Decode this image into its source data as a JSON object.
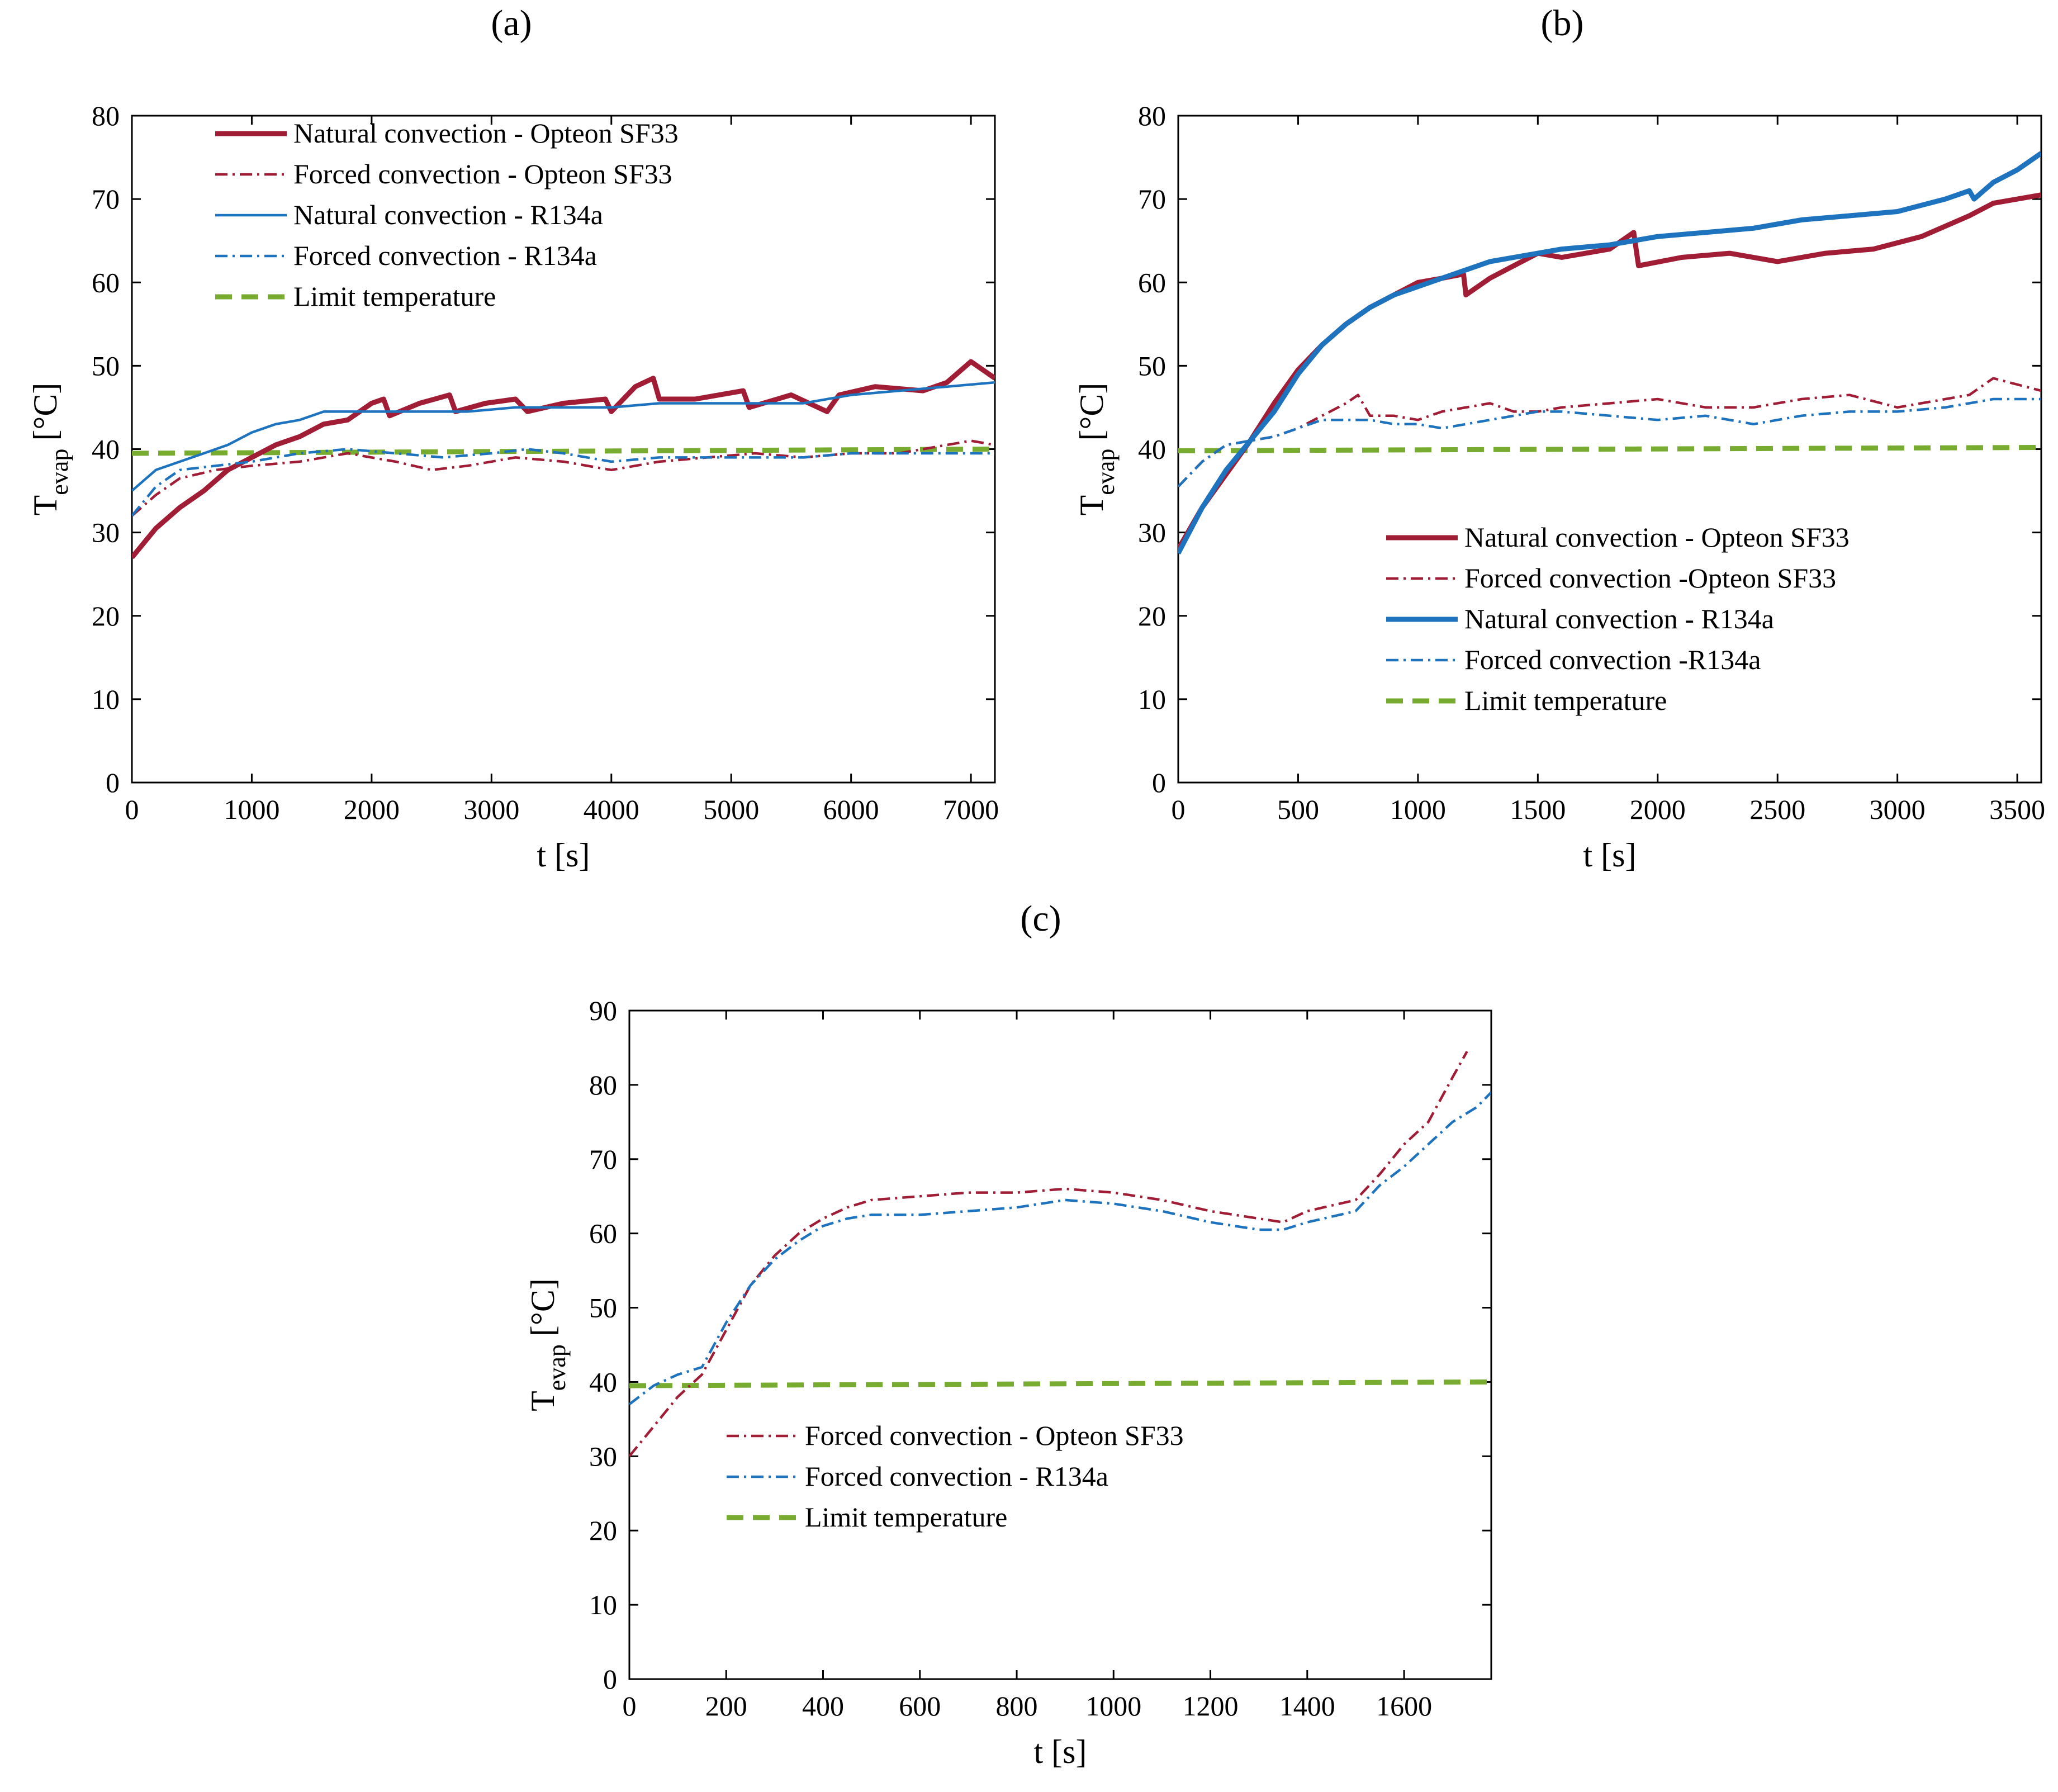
{
  "figure": {
    "colors": {
      "opteon": "#a01d35",
      "r134a": "#1e73be",
      "limit": "#77ac30",
      "axis": "#000000"
    }
  },
  "chart_data": [
    {
      "id": "a",
      "type": "line",
      "panel_label": "(a)",
      "xlabel": "t [s]",
      "ylabel_main": "T",
      "ylabel_sub": "evap",
      "ylabel_unit": "[°C]",
      "xlim": [
        0,
        7200
      ],
      "ylim": [
        0,
        80
      ],
      "xticks": [
        0,
        1000,
        2000,
        3000,
        4000,
        5000,
        6000,
        7000
      ],
      "yticks": [
        0,
        10,
        20,
        30,
        40,
        50,
        60,
        70,
        80
      ],
      "legend_position": "top-left",
      "series": [
        {
          "name": "Natural convection - Opteon SF33",
          "color": "#a01d35",
          "style": "solid",
          "width": "thick",
          "x": [
            0,
            200,
            400,
            600,
            800,
            1000,
            1200,
            1400,
            1600,
            1800,
            2000,
            2100,
            2150,
            2400,
            2650,
            2700,
            2950,
            3200,
            3300,
            3600,
            3950,
            4000,
            4200,
            4350,
            4400,
            4700,
            5100,
            5150,
            5500,
            5800,
            5900,
            6200,
            6600,
            6800,
            7000,
            7100,
            7200
          ],
          "y": [
            27,
            30.5,
            33,
            35,
            37.5,
            39,
            40.5,
            41.5,
            43,
            43.5,
            45.5,
            46,
            44,
            45.5,
            46.5,
            44.5,
            45.5,
            46,
            44.5,
            45.5,
            46,
            44.5,
            47.5,
            48.5,
            46,
            46,
            47,
            45,
            46.5,
            44.5,
            46.5,
            47.5,
            47,
            48,
            50.5,
            49.5,
            48.5
          ]
        },
        {
          "name": "Forced convection - Opteon SF33",
          "color": "#a01d35",
          "style": "dashdot",
          "width": "thin",
          "x": [
            0,
            200,
            400,
            700,
            1000,
            1400,
            1800,
            2200,
            2500,
            2800,
            3200,
            3600,
            4000,
            4400,
            4800,
            5200,
            5600,
            6000,
            6400,
            6800,
            7000,
            7200
          ],
          "y": [
            32,
            34.5,
            36.5,
            37.5,
            38,
            38.5,
            39.5,
            38.5,
            37.5,
            38,
            39,
            38.5,
            37.5,
            38.5,
            39,
            39.5,
            39,
            39.5,
            39.5,
            40.5,
            41,
            40.5
          ]
        },
        {
          "name": "Natural convection - R134a",
          "color": "#1e73be",
          "style": "solid",
          "width": "thin",
          "x": [
            0,
            200,
            400,
            600,
            800,
            1000,
            1200,
            1400,
            1600,
            1800,
            2000,
            2400,
            2800,
            3200,
            3600,
            4000,
            4400,
            4800,
            5200,
            5600,
            6000,
            6400,
            6800,
            7200
          ],
          "y": [
            35,
            37.5,
            38.5,
            39.5,
            40.5,
            42,
            43,
            43.5,
            44.5,
            44.5,
            44.5,
            44.5,
            44.5,
            45,
            45,
            45,
            45.5,
            45.5,
            45.5,
            45.5,
            46.5,
            47,
            47.5,
            48
          ]
        },
        {
          "name": "Forced convection - R134a",
          "color": "#1e73be",
          "style": "dashdot",
          "width": "thin",
          "x": [
            0,
            200,
            400,
            700,
            1000,
            1400,
            1800,
            2200,
            2600,
            3000,
            3300,
            3600,
            4000,
            4400,
            4800,
            5200,
            5600,
            6000,
            6400,
            6800,
            7200
          ],
          "y": [
            32,
            35.5,
            37.5,
            38,
            38.5,
            39.5,
            40,
            39.5,
            39,
            39.5,
            40,
            39.5,
            38.5,
            39,
            39,
            39,
            39,
            39.5,
            39.5,
            39.5,
            39.5
          ]
        },
        {
          "name": "Limit temperature",
          "color": "#77ac30",
          "style": "dashed",
          "width": "thick",
          "x": [
            0,
            7200
          ],
          "y": [
            39.5,
            40
          ]
        }
      ]
    },
    {
      "id": "b",
      "type": "line",
      "panel_label": "(b)",
      "xlabel": "t [s]",
      "ylabel_main": "T",
      "ylabel_sub": "evap",
      "ylabel_unit": "[°C]",
      "xlim": [
        0,
        3600
      ],
      "ylim": [
        0,
        80
      ],
      "xticks": [
        0,
        500,
        1000,
        1500,
        2000,
        2500,
        3000,
        3500
      ],
      "yticks": [
        0,
        10,
        20,
        30,
        40,
        50,
        60,
        70,
        80
      ],
      "legend_position": "bottom-right",
      "series": [
        {
          "name": "Natural convection - Opteon SF33",
          "color": "#a01d35",
          "style": "solid",
          "width": "thick",
          "x": [
            0,
            100,
            200,
            300,
            400,
            500,
            600,
            700,
            800,
            900,
            1000,
            1100,
            1190,
            1200,
            1300,
            1400,
            1500,
            1600,
            1800,
            1900,
            1920,
            2100,
            2300,
            2500,
            2700,
            2900,
            3100,
            3300,
            3400,
            3600
          ],
          "y": [
            28,
            33,
            37,
            41,
            45.5,
            49.5,
            52.5,
            55,
            57,
            58.5,
            60,
            60.5,
            61,
            58.5,
            60.5,
            62,
            63.5,
            63,
            64,
            66,
            62,
            63,
            63.5,
            62.5,
            63.5,
            64,
            65.5,
            68,
            69.5,
            70.5
          ]
        },
        {
          "name": "Forced convection -Opteon SF33",
          "color": "#a01d35",
          "style": "dashdot",
          "width": "thin",
          "x": [
            0,
            100,
            200,
            300,
            400,
            500,
            600,
            700,
            750,
            800,
            900,
            1000,
            1100,
            1200,
            1300,
            1400,
            1500,
            1600,
            1800,
            2000,
            2200,
            2400,
            2600,
            2800,
            3000,
            3200,
            3300,
            3400,
            3600
          ],
          "y": [
            35.5,
            38.5,
            40.5,
            41,
            41.5,
            42.5,
            44,
            45.5,
            46.5,
            44,
            44,
            43.5,
            44.5,
            45,
            45.5,
            44.5,
            44.5,
            45,
            45.5,
            46,
            45,
            45,
            46,
            46.5,
            45,
            46,
            46.5,
            48.5,
            47
          ]
        },
        {
          "name": "Natural convection - R134a",
          "color": "#1e73be",
          "style": "solid",
          "width": "thick",
          "x": [
            0,
            100,
            200,
            300,
            400,
            500,
            600,
            700,
            800,
            900,
            1000,
            1100,
            1200,
            1300,
            1400,
            1500,
            1600,
            1800,
            2000,
            2200,
            2400,
            2600,
            2800,
            3000,
            3200,
            3300,
            3320,
            3400,
            3500,
            3600
          ],
          "y": [
            27.5,
            33,
            37.5,
            41,
            44.5,
            49,
            52.5,
            55,
            57,
            58.5,
            59.5,
            60.5,
            61.5,
            62.5,
            63,
            63.5,
            64,
            64.5,
            65.5,
            66,
            66.5,
            67.5,
            68,
            68.5,
            70,
            71,
            70,
            72,
            73.5,
            75.5
          ]
        },
        {
          "name": "Forced convection -R134a",
          "color": "#1e73be",
          "style": "dashdot",
          "width": "thin",
          "x": [
            0,
            100,
            200,
            300,
            400,
            500,
            600,
            700,
            800,
            900,
            1000,
            1100,
            1200,
            1300,
            1400,
            1500,
            1600,
            1800,
            2000,
            2200,
            2400,
            2600,
            2800,
            3000,
            3200,
            3400,
            3600
          ],
          "y": [
            35.5,
            38.5,
            40.5,
            41,
            41.5,
            42.5,
            43.5,
            43.5,
            43.5,
            43,
            43,
            42.5,
            43,
            43.5,
            44,
            44.5,
            44.5,
            44,
            43.5,
            44,
            43,
            44,
            44.5,
            44.5,
            45,
            46,
            46
          ]
        },
        {
          "name": "Limit temperature",
          "color": "#77ac30",
          "style": "dashed",
          "width": "thick",
          "x": [
            0,
            3600
          ],
          "y": [
            39.8,
            40.2
          ]
        }
      ]
    },
    {
      "id": "c",
      "type": "line",
      "panel_label": "(c)",
      "xlabel": "t [s]",
      "ylabel_main": "T",
      "ylabel_sub": "evap",
      "ylabel_unit": "[°C]",
      "xlim": [
        0,
        1780
      ],
      "ylim": [
        0,
        90
      ],
      "xticks": [
        0,
        200,
        400,
        600,
        800,
        1000,
        1200,
        1400,
        1600
      ],
      "yticks": [
        0,
        10,
        20,
        30,
        40,
        50,
        60,
        70,
        80,
        90
      ],
      "legend_position": "lower-middle",
      "series": [
        {
          "name": "Forced convection - Opteon SF33",
          "color": "#a01d35",
          "style": "dashdot",
          "width": "thin",
          "x": [
            0,
            50,
            100,
            150,
            200,
            250,
            300,
            350,
            400,
            450,
            500,
            600,
            700,
            800,
            900,
            1000,
            1100,
            1200,
            1300,
            1350,
            1400,
            1500,
            1550,
            1600,
            1650,
            1700,
            1730
          ],
          "y": [
            30,
            34,
            38,
            41,
            47,
            53,
            57,
            60,
            62,
            63.5,
            64.5,
            65,
            65.5,
            65.5,
            66,
            65.5,
            64.5,
            63,
            62,
            61.5,
            63,
            64.5,
            68,
            72,
            75,
            81,
            84.5
          ]
        },
        {
          "name": "Forced convection - R134a",
          "color": "#1e73be",
          "style": "dashdot",
          "width": "thin",
          "x": [
            0,
            50,
            100,
            150,
            200,
            250,
            300,
            350,
            400,
            450,
            500,
            600,
            700,
            800,
            900,
            1000,
            1100,
            1200,
            1300,
            1350,
            1400,
            1500,
            1550,
            1600,
            1650,
            1700,
            1750,
            1780
          ],
          "y": [
            37,
            39.5,
            41,
            42,
            48,
            53,
            56.5,
            59,
            61,
            62,
            62.5,
            62.5,
            63,
            63.5,
            64.5,
            64,
            63,
            61.5,
            60.5,
            60.5,
            61.5,
            63,
            66.5,
            69,
            72,
            75,
            77,
            79
          ]
        },
        {
          "name": "Limit temperature",
          "color": "#77ac30",
          "style": "dashed",
          "width": "thick",
          "x": [
            0,
            1780
          ],
          "y": [
            39.5,
            40
          ]
        }
      ]
    }
  ]
}
